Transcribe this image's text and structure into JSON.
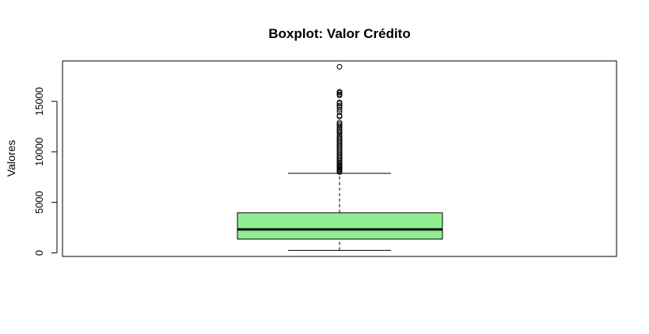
{
  "chart_data": {
    "type": "boxplot",
    "title": "Boxplot: Valor Crédito",
    "xlabel": "",
    "ylabel": "Valores",
    "ylim": [
      -350,
      19000
    ],
    "yticks": [
      0,
      5000,
      10000,
      15000
    ],
    "ytick_labels": [
      "0",
      "5000",
      "10000",
      "15000"
    ],
    "grid": false,
    "box": {
      "color": "#90ee90",
      "whisker_low": 250,
      "q1": 1370,
      "median": 2320,
      "q3": 3970,
      "whisker_high": 7880
    },
    "outliers": [
      18420,
      15950,
      15850,
      15700,
      15600,
      14900,
      14800,
      14600,
      14450,
      14200,
      13950,
      13600,
      13500,
      12900,
      12750,
      12600,
      12400,
      12200,
      12050,
      11900,
      11700,
      11500,
      11350,
      11200,
      11050,
      10900,
      10750,
      10600,
      10450,
      10300,
      10150,
      10000,
      9850,
      9700,
      9550,
      9400,
      9250,
      9100,
      8950,
      8850,
      8700,
      8600,
      8500,
      8400,
      8300,
      8200,
      8100,
      8000
    ]
  }
}
